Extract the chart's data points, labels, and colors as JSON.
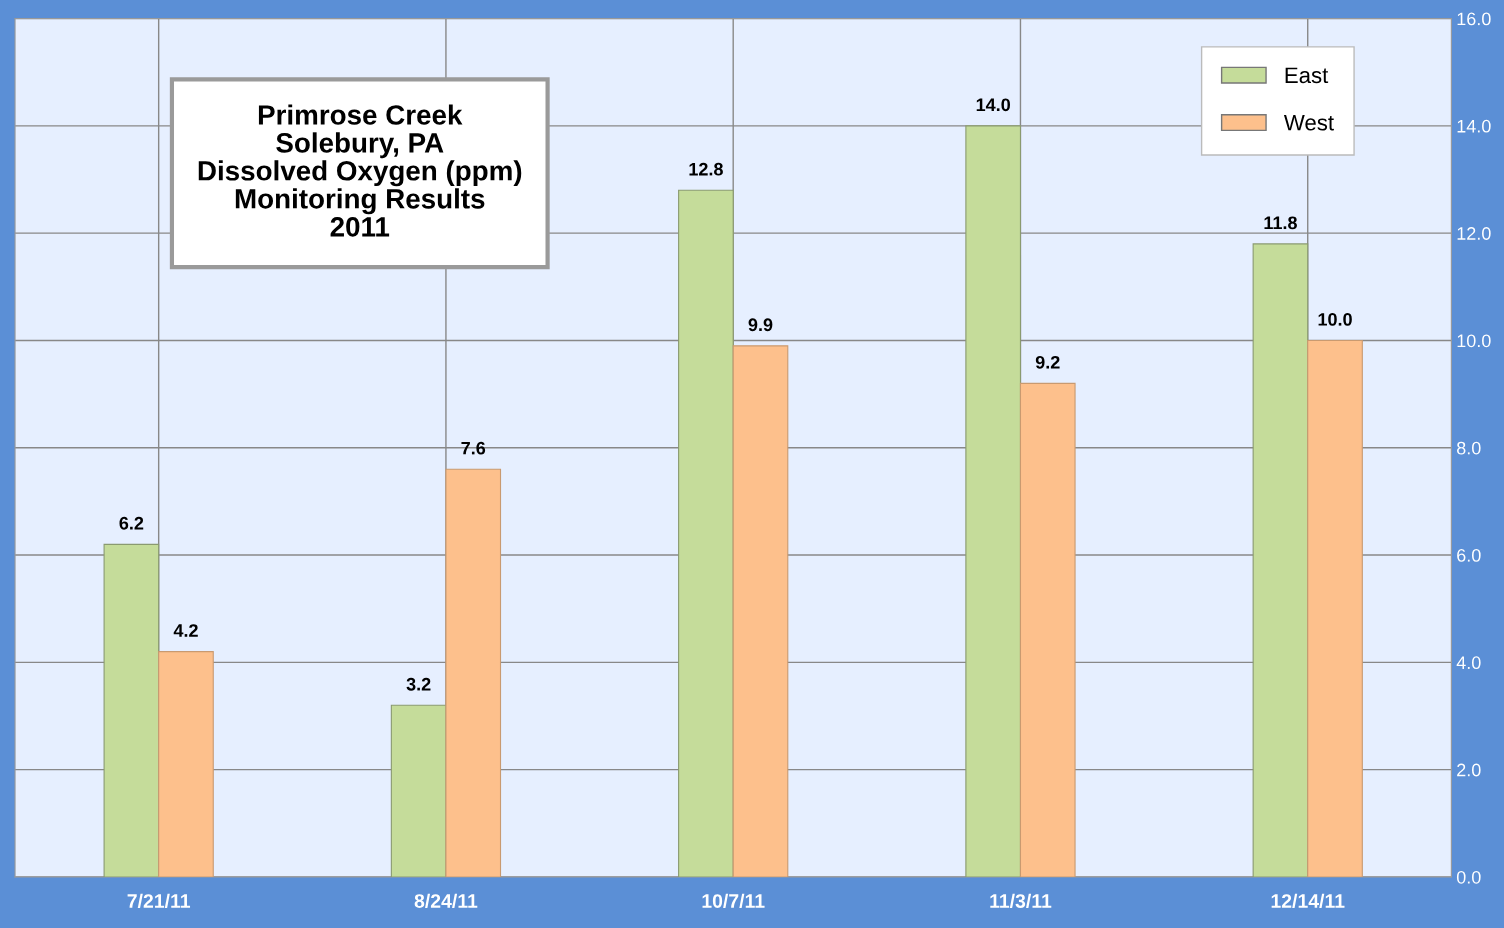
{
  "chart_data": {
    "type": "bar",
    "title": "Primrose Creek\nSolebury, PA\nDissolved Oxygen (ppm)\nMonitoring Results\n2011",
    "categories": [
      "7/21/11",
      "8/24/11",
      "10/7/11",
      "11/3/11",
      "12/14/11"
    ],
    "series": [
      {
        "name": "East",
        "color": "#c5dc9a",
        "values": [
          6.2,
          3.2,
          12.8,
          14.0,
          11.8
        ],
        "value_labels": [
          "6.2",
          "3.2",
          "12.8",
          "14.0",
          "11.8"
        ]
      },
      {
        "name": "West",
        "color": "#fdc08c",
        "values": [
          4.2,
          7.6,
          9.9,
          9.2,
          10.0
        ],
        "value_labels": [
          "4.2",
          "7.6",
          "9.9",
          "9.2",
          "10.0"
        ]
      }
    ],
    "ylim": [
      0,
      16
    ],
    "yticks": [
      {
        "value": 0,
        "label": "0.0"
      },
      {
        "value": 2,
        "label": "2.0"
      },
      {
        "value": 4,
        "label": "4.0"
      },
      {
        "value": 6,
        "label": "6.0"
      },
      {
        "value": 8,
        "label": "8.0"
      },
      {
        "value": 10,
        "label": "10.0"
      },
      {
        "value": 12,
        "label": "12.0"
      },
      {
        "value": 14,
        "label": "14.0"
      },
      {
        "value": 16,
        "label": "16.0"
      }
    ],
    "legend": "top right",
    "grid": true
  }
}
